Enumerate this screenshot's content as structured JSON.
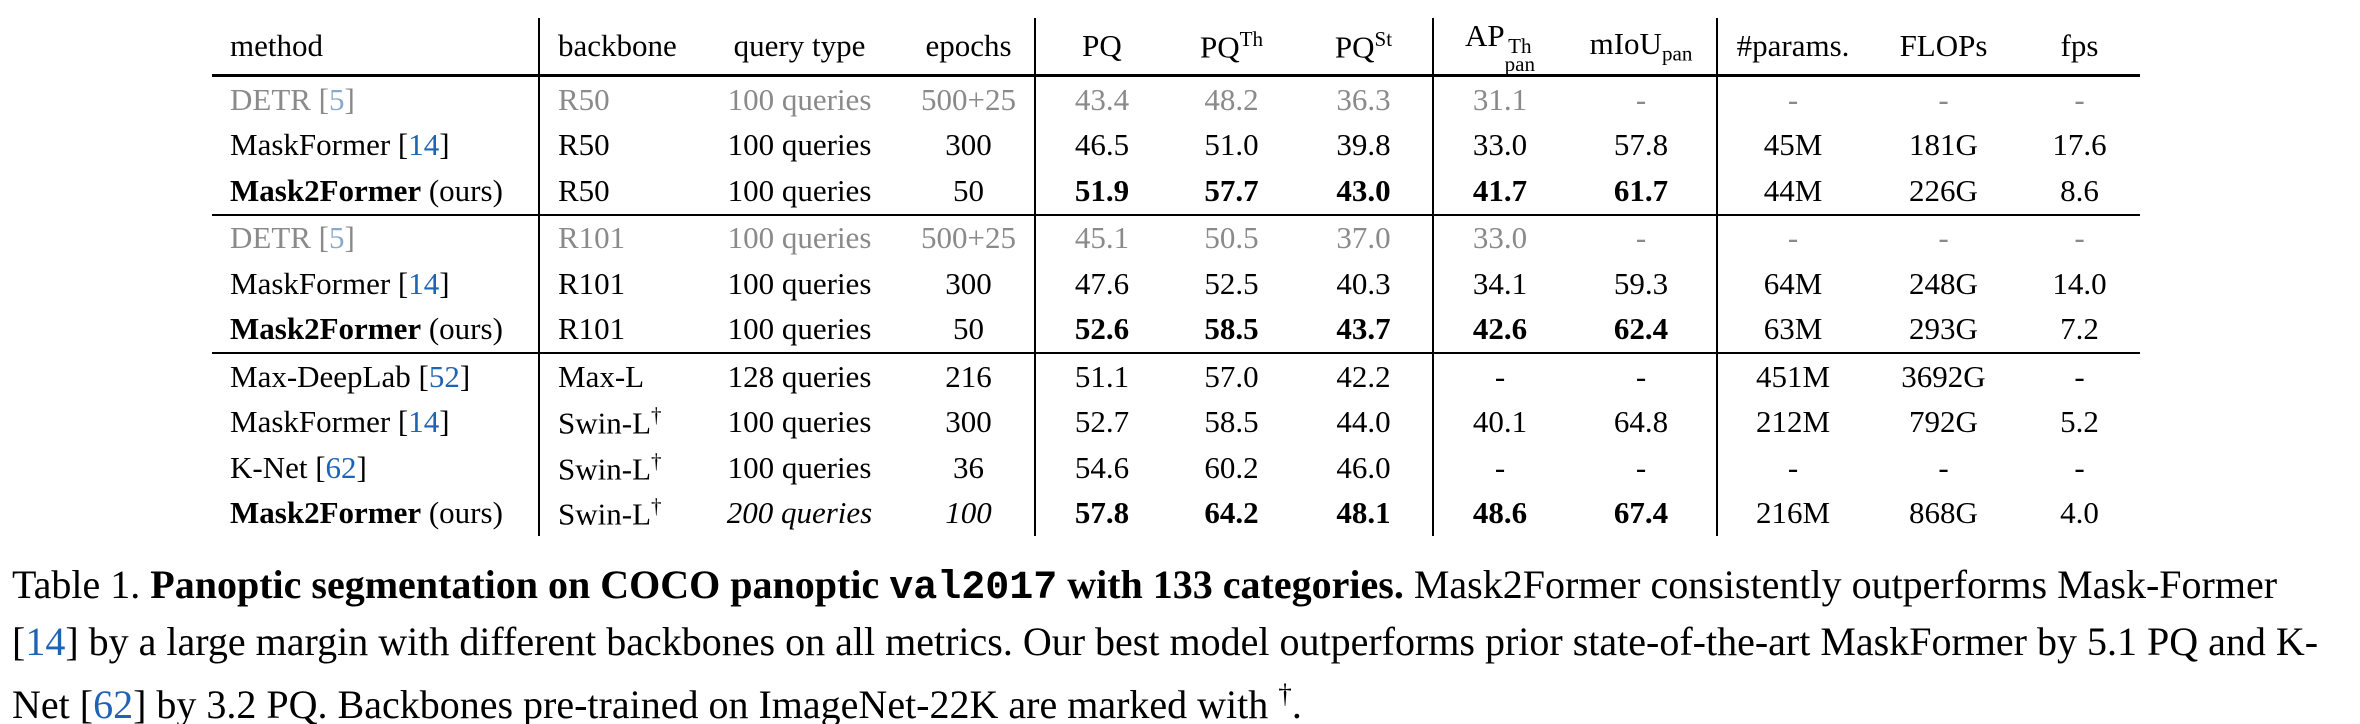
{
  "table": {
    "header": [
      [
        "method"
      ],
      [
        "backbone"
      ],
      [
        "query type"
      ],
      [
        "epochs"
      ],
      [
        "PQ"
      ],
      [
        "PQ",
        {
          "text": "Th",
          "style": "sup"
        }
      ],
      [
        "PQ",
        {
          "text": "St",
          "style": "sup"
        }
      ],
      [
        "AP",
        {
          "text": "Th",
          "style": "sup"
        },
        {
          "text": "pan",
          "style": "sub"
        }
      ],
      [
        "mIoU",
        {
          "text": "pan",
          "style": "sub"
        }
      ],
      [
        "#params."
      ],
      [
        "FLOPs"
      ],
      [
        "fps"
      ]
    ],
    "groups": [
      {
        "rows": [
          {
            "muted": true,
            "cells": [
              [
                "DETR [",
                {
                  "text": "5",
                  "style": "cite"
                },
                "]"
              ],
              [
                "R50"
              ],
              [
                "100 queries"
              ],
              [
                "500+25"
              ],
              [
                "43.4"
              ],
              [
                "48.2"
              ],
              [
                "36.3"
              ],
              [
                "31.1"
              ],
              [
                "-"
              ],
              [
                "-"
              ],
              [
                "-"
              ],
              [
                "-"
              ]
            ]
          },
          {
            "cells": [
              [
                "MaskFormer [",
                {
                  "text": "14",
                  "style": "cite"
                },
                "]"
              ],
              [
                "R50"
              ],
              [
                "100 queries"
              ],
              [
                "300"
              ],
              [
                "46.5"
              ],
              [
                "51.0"
              ],
              [
                "39.8"
              ],
              [
                "33.0"
              ],
              [
                "57.8"
              ],
              [
                "45M"
              ],
              [
                "181G"
              ],
              [
                "17.6"
              ]
            ]
          },
          {
            "cells": [
              [
                {
                  "text": "Mask2Former",
                  "style": "bold"
                },
                " (ours)"
              ],
              [
                "R50"
              ],
              [
                "100 queries"
              ],
              [
                "50"
              ],
              [
                {
                  "text": "51.9",
                  "style": "bold"
                }
              ],
              [
                {
                  "text": "57.7",
                  "style": "bold"
                }
              ],
              [
                {
                  "text": "43.0",
                  "style": "bold"
                }
              ],
              [
                {
                  "text": "41.7",
                  "style": "bold"
                }
              ],
              [
                {
                  "text": "61.7",
                  "style": "bold"
                }
              ],
              [
                "44M"
              ],
              [
                "226G"
              ],
              [
                "8.6"
              ]
            ]
          }
        ]
      },
      {
        "rows": [
          {
            "muted": true,
            "cells": [
              [
                "DETR [",
                {
                  "text": "5",
                  "style": "cite"
                },
                "]"
              ],
              [
                "R101"
              ],
              [
                "100 queries"
              ],
              [
                "500+25"
              ],
              [
                "45.1"
              ],
              [
                "50.5"
              ],
              [
                "37.0"
              ],
              [
                "33.0"
              ],
              [
                "-"
              ],
              [
                "-"
              ],
              [
                "-"
              ],
              [
                "-"
              ]
            ]
          },
          {
            "cells": [
              [
                "MaskFormer [",
                {
                  "text": "14",
                  "style": "cite"
                },
                "]"
              ],
              [
                "R101"
              ],
              [
                "100 queries"
              ],
              [
                "300"
              ],
              [
                "47.6"
              ],
              [
                "52.5"
              ],
              [
                "40.3"
              ],
              [
                "34.1"
              ],
              [
                "59.3"
              ],
              [
                "64M"
              ],
              [
                "248G"
              ],
              [
                "14.0"
              ]
            ]
          },
          {
            "cells": [
              [
                {
                  "text": "Mask2Former",
                  "style": "bold"
                },
                " (ours)"
              ],
              [
                "R101"
              ],
              [
                "100 queries"
              ],
              [
                "50"
              ],
              [
                {
                  "text": "52.6",
                  "style": "bold"
                }
              ],
              [
                {
                  "text": "58.5",
                  "style": "bold"
                }
              ],
              [
                {
                  "text": "43.7",
                  "style": "bold"
                }
              ],
              [
                {
                  "text": "42.6",
                  "style": "bold"
                }
              ],
              [
                {
                  "text": "62.4",
                  "style": "bold"
                }
              ],
              [
                "63M"
              ],
              [
                "293G"
              ],
              [
                "7.2"
              ]
            ]
          }
        ]
      },
      {
        "rows": [
          {
            "cells": [
              [
                "Max-DeepLab [",
                {
                  "text": "52",
                  "style": "cite"
                },
                "]"
              ],
              [
                "Max-L"
              ],
              [
                "128 queries"
              ],
              [
                "216"
              ],
              [
                "51.1"
              ],
              [
                "57.0"
              ],
              [
                "42.2"
              ],
              [
                "-"
              ],
              [
                "-"
              ],
              [
                "451M"
              ],
              [
                "3692G"
              ],
              [
                "-"
              ]
            ]
          },
          {
            "cells": [
              [
                "MaskFormer [",
                {
                  "text": "14",
                  "style": "cite"
                },
                "]"
              ],
              [
                "Swin-L",
                {
                  "text": "†",
                  "style": "sup"
                }
              ],
              [
                "100 queries"
              ],
              [
                "300"
              ],
              [
                "52.7"
              ],
              [
                "58.5"
              ],
              [
                "44.0"
              ],
              [
                "40.1"
              ],
              [
                "64.8"
              ],
              [
                "212M"
              ],
              [
                "792G"
              ],
              [
                "5.2"
              ]
            ]
          },
          {
            "cells": [
              [
                "K-Net [",
                {
                  "text": "62",
                  "style": "cite"
                },
                "]"
              ],
              [
                "Swin-L",
                {
                  "text": "†",
                  "style": "sup"
                }
              ],
              [
                "100 queries"
              ],
              [
                "36"
              ],
              [
                "54.6"
              ],
              [
                "60.2"
              ],
              [
                "46.0"
              ],
              [
                "-"
              ],
              [
                "-"
              ],
              [
                "-"
              ],
              [
                "-"
              ],
              [
                "-"
              ]
            ]
          },
          {
            "cells": [
              [
                {
                  "text": "Mask2Former",
                  "style": "bold"
                },
                " (ours)"
              ],
              [
                "Swin-L",
                {
                  "text": "†",
                  "style": "sup"
                }
              ],
              [
                {
                  "text": "200 queries",
                  "style": "italic"
                }
              ],
              [
                {
                  "text": "100",
                  "style": "italic"
                }
              ],
              [
                {
                  "text": "57.8",
                  "style": "bold"
                }
              ],
              [
                {
                  "text": "64.2",
                  "style": "bold"
                }
              ],
              [
                {
                  "text": "48.1",
                  "style": "bold"
                }
              ],
              [
                {
                  "text": "48.6",
                  "style": "bold"
                }
              ],
              [
                {
                  "text": "67.4",
                  "style": "bold"
                }
              ],
              [
                "216M"
              ],
              [
                "868G"
              ],
              [
                "4.0"
              ]
            ]
          }
        ]
      }
    ]
  },
  "caption": [
    "Table 1. ",
    {
      "text": "Panoptic segmentation on COCO panoptic ",
      "style": "bold"
    },
    {
      "text": "val2017",
      "style": "mono-bold"
    },
    {
      "text": " with 133 categories.",
      "style": "bold"
    },
    " Mask2Former consistently outperforms Mask-Former [",
    {
      "text": "14",
      "style": "cite"
    },
    "] by a large margin with different backbones on all metrics. Our best model outperforms prior state-of-the-art MaskFormer by 5.1 PQ and K-Net [",
    {
      "text": "62",
      "style": "cite"
    },
    "] by 3.2 PQ. Backbones pre-trained on ImageNet-22K are marked with ",
    {
      "text": "†",
      "style": "sup"
    },
    "."
  ]
}
